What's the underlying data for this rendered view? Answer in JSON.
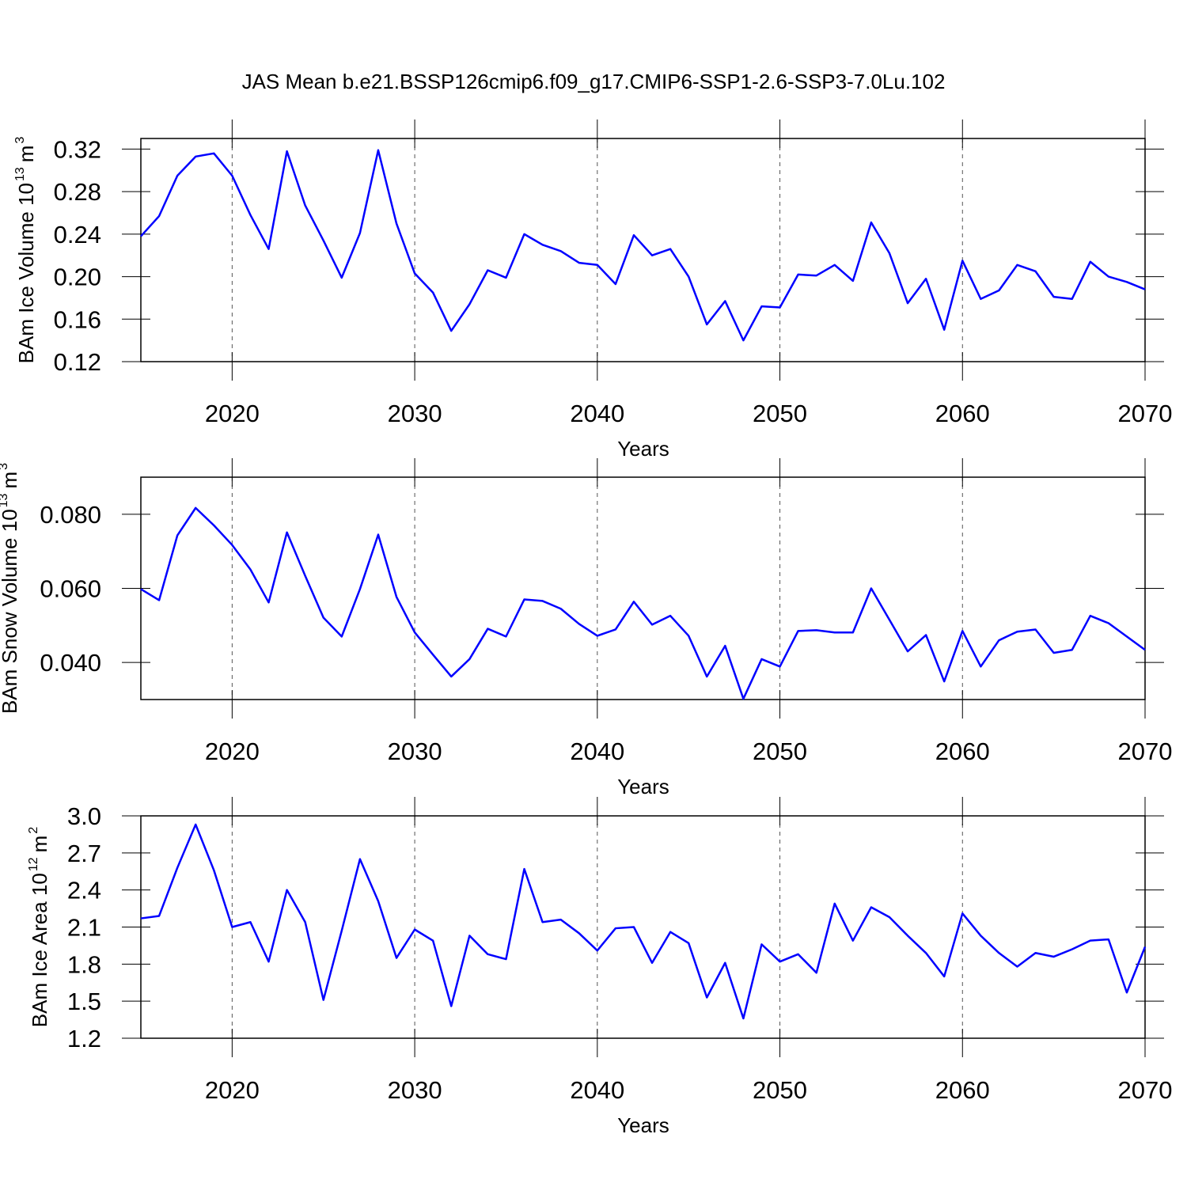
{
  "chart_data": [
    {
      "type": "line",
      "title": "JAS Mean b.e21.BSSP126cmip6.f09_g17.CMIP6-SSP1-2.6-SSP3-7.0Lu.102",
      "xlabel": "Years",
      "ylabel": [
        "BAm Ice Volume 10",
        "13",
        "m",
        "3"
      ],
      "x": [
        2015,
        2016,
        2017,
        2018,
        2019,
        2020,
        2021,
        2022,
        2023,
        2024,
        2025,
        2026,
        2027,
        2028,
        2029,
        2030,
        2031,
        2032,
        2033,
        2034,
        2035,
        2036,
        2037,
        2038,
        2039,
        2040,
        2041,
        2042,
        2043,
        2044,
        2045,
        2046,
        2047,
        2048,
        2049,
        2050,
        2051,
        2052,
        2053,
        2054,
        2055,
        2056,
        2057,
        2058,
        2059,
        2060,
        2061,
        2062,
        2063,
        2064,
        2065,
        2066,
        2067,
        2068,
        2069,
        2070
      ],
      "values": [
        0.238,
        0.257,
        0.295,
        0.313,
        0.316,
        0.295,
        0.258,
        0.226,
        0.318,
        0.267,
        0.234,
        0.199,
        0.241,
        0.319,
        0.25,
        0.203,
        0.185,
        0.149,
        0.174,
        0.206,
        0.199,
        0.24,
        0.23,
        0.224,
        0.213,
        0.211,
        0.193,
        0.239,
        0.22,
        0.226,
        0.2,
        0.155,
        0.177,
        0.14,
        0.172,
        0.171,
        0.202,
        0.201,
        0.211,
        0.196,
        0.251,
        0.222,
        0.175,
        0.198,
        0.15,
        0.215,
        0.179,
        0.187,
        0.211,
        0.205,
        0.181,
        0.179,
        0.214,
        0.2,
        0.195,
        0.188
      ],
      "color": "#0000ff",
      "xlim": [
        2015,
        2070
      ],
      "xticks": [
        2020,
        2030,
        2040,
        2050,
        2060,
        2070
      ],
      "ylim": [
        0.12,
        0.33
      ],
      "yticks": [
        0.12,
        0.16,
        {
          "value": 0.2,
          "label": "0.20"
        },
        0.24,
        0.28,
        0.32
      ],
      "xgrid": true
    },
    {
      "type": "line",
      "xlabel": "Years",
      "ylabel": [
        "BAm Snow Volume 10",
        "13",
        "m",
        "3"
      ],
      "x": [
        2015,
        2016,
        2017,
        2018,
        2019,
        2020,
        2021,
        2022,
        2023,
        2024,
        2025,
        2026,
        2027,
        2028,
        2029,
        2030,
        2031,
        2032,
        2033,
        2034,
        2035,
        2036,
        2037,
        2038,
        2039,
        2040,
        2041,
        2042,
        2043,
        2044,
        2045,
        2046,
        2047,
        2048,
        2049,
        2050,
        2051,
        2052,
        2053,
        2054,
        2055,
        2056,
        2057,
        2058,
        2059,
        2060,
        2061,
        2062,
        2063,
        2064,
        2065,
        2066,
        2067,
        2068,
        2069,
        2070
      ],
      "values": [
        0.0598,
        0.0568,
        0.0743,
        0.0817,
        0.077,
        0.0717,
        0.0651,
        0.0562,
        0.0751,
        0.0634,
        0.0521,
        0.047,
        0.0598,
        0.0745,
        0.0577,
        0.0481,
        0.0421,
        0.0362,
        0.0409,
        0.0491,
        0.047,
        0.057,
        0.0566,
        0.0545,
        0.0504,
        0.0472,
        0.0489,
        0.0564,
        0.0502,
        0.0526,
        0.0472,
        0.0362,
        0.0445,
        0.0302,
        0.0409,
        0.0389,
        0.0485,
        0.0487,
        0.0481,
        0.0481,
        0.06,
        0.0515,
        0.043,
        0.0474,
        0.0349,
        0.0485,
        0.0389,
        0.046,
        0.0483,
        0.0489,
        0.0426,
        0.0434,
        0.0526,
        0.0506,
        0.047,
        0.0434
      ],
      "color": "#0000ff",
      "xlim": [
        2015,
        2070
      ],
      "xticks": [
        2020,
        2030,
        2040,
        2050,
        2060,
        2070
      ],
      "ylim": [
        0.03,
        0.09
      ],
      "yticks": [
        {
          "value": 0.04,
          "label": "0.040"
        },
        {
          "value": 0.06,
          "label": "0.060"
        },
        {
          "value": 0.08,
          "label": "0.080"
        }
      ],
      "xgrid": true
    },
    {
      "type": "line",
      "xlabel": "Years",
      "ylabel": [
        "BAm Ice Area 10",
        "12",
        "m",
        "2"
      ],
      "x": [
        2015,
        2016,
        2017,
        2018,
        2019,
        2020,
        2021,
        2022,
        2023,
        2024,
        2025,
        2026,
        2027,
        2028,
        2029,
        2030,
        2031,
        2032,
        2033,
        2034,
        2035,
        2036,
        2037,
        2038,
        2039,
        2040,
        2041,
        2042,
        2043,
        2044,
        2045,
        2046,
        2047,
        2048,
        2049,
        2050,
        2051,
        2052,
        2053,
        2054,
        2055,
        2056,
        2057,
        2058,
        2059,
        2060,
        2061,
        2062,
        2063,
        2064,
        2065,
        2066,
        2067,
        2068,
        2069,
        2070
      ],
      "values": [
        2.17,
        2.19,
        2.58,
        2.93,
        2.56,
        2.1,
        2.14,
        1.82,
        2.4,
        2.14,
        1.51,
        2.07,
        2.65,
        2.31,
        1.85,
        2.08,
        1.99,
        1.46,
        2.03,
        1.88,
        1.84,
        2.57,
        2.14,
        2.16,
        2.05,
        1.91,
        2.09,
        2.1,
        1.81,
        2.06,
        1.97,
        1.53,
        1.81,
        1.36,
        1.96,
        1.82,
        1.88,
        1.73,
        2.29,
        1.99,
        2.26,
        2.18,
        2.03,
        1.89,
        1.7,
        2.21,
        2.03,
        1.89,
        1.78,
        1.89,
        1.86,
        1.92,
        1.99,
        2.0,
        1.57,
        1.94
      ],
      "color": "#0000ff",
      "xlim": [
        2015,
        2070
      ],
      "xticks": [
        2020,
        2030,
        2040,
        2050,
        2060,
        2070
      ],
      "ylim": [
        1.2,
        3.0
      ],
      "yticks": [
        1.2,
        1.5,
        1.8,
        2.1,
        2.4,
        2.7,
        {
          "value": 3,
          "label": "3.0"
        }
      ],
      "xgrid": true
    }
  ]
}
